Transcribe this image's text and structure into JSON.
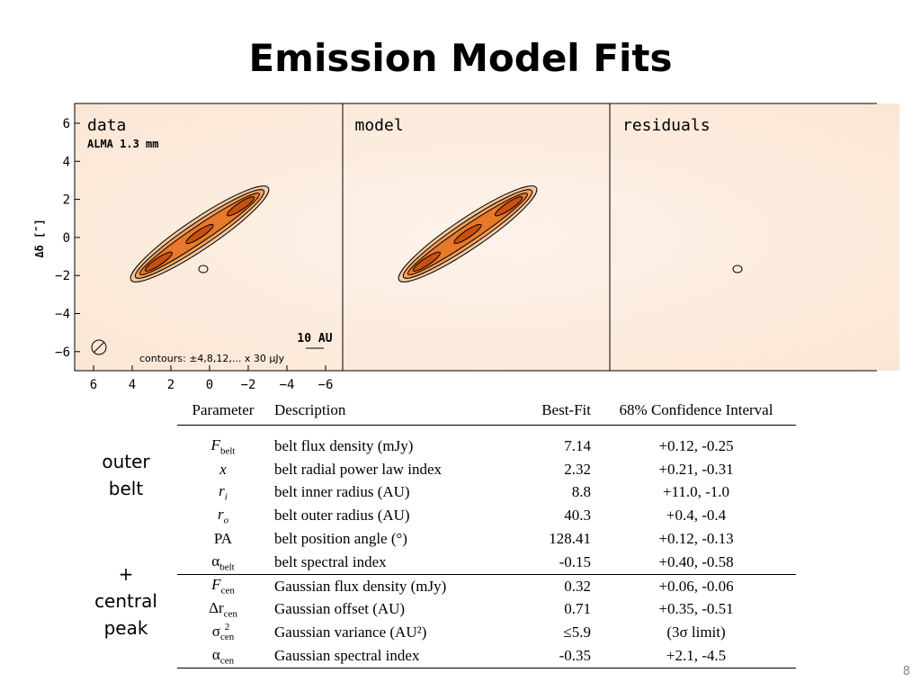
{
  "title": "Emission Model Fits",
  "panels": [
    {
      "label": "data",
      "sublabel": "ALMA 1.3 mm"
    },
    {
      "label": "model"
    },
    {
      "label": "residuals"
    }
  ],
  "y_axis_label": "Δδ [″]",
  "y_ticks": [
    "6",
    "4",
    "2",
    "0",
    "−2",
    "−4",
    "−6"
  ],
  "x_ticks": [
    "6",
    "4",
    "2",
    "0",
    "−2",
    "−4",
    "−6"
  ],
  "scale_bar": "10 AU",
  "contours_note": "contours: ±4,8,12,... x 30 μJy",
  "groups": [
    {
      "lines": [
        "outer",
        "belt"
      ]
    },
    {
      "lines": [
        "+",
        "central",
        "peak"
      ]
    }
  ],
  "table": {
    "header": [
      "Parameter",
      "Description",
      "Best-Fit",
      "68% Confidence Interval"
    ],
    "rows": [
      {
        "param": {
          "base": "F",
          "sub": "belt"
        },
        "description": "belt flux density (mJy)",
        "best_fit": "7.14",
        "interval": "+0.12, -0.25"
      },
      {
        "param": {
          "base": "x"
        },
        "description": "belt radial power law index",
        "best_fit": "2.32",
        "interval": "+0.21, -0.31"
      },
      {
        "param": {
          "base": "r",
          "sub": "i"
        },
        "description": "belt inner radius (AU)",
        "best_fit": "8.8",
        "interval": "+11.0, -1.0"
      },
      {
        "param": {
          "base": "r",
          "sub": "o"
        },
        "description": "belt outer radius (AU)",
        "best_fit": "40.3",
        "interval": "+0.4, -0.4"
      },
      {
        "param": {
          "base": "PA"
        },
        "description": "belt position angle (°)",
        "best_fit": "128.41",
        "interval": "+0.12, -0.13"
      },
      {
        "param": {
          "base": "α",
          "sub": "belt"
        },
        "description": "belt spectral index",
        "best_fit": "-0.15",
        "interval": "+0.40, -0.58"
      },
      {
        "param": {
          "base": "F",
          "sub": "cen"
        },
        "description": "Gaussian flux density (mJy)",
        "best_fit": "0.32",
        "interval": "+0.06, -0.06"
      },
      {
        "param": {
          "base": "Δr",
          "sub": "cen"
        },
        "description": "Gaussian offset (AU)",
        "best_fit": "0.71",
        "interval": "+0.35, -0.51"
      },
      {
        "param": {
          "base": "σ",
          "sup": "2",
          "sub": "cen"
        },
        "description": "Gaussian variance (AU²)",
        "best_fit": "≤5.9",
        "interval": "(3σ limit)"
      },
      {
        "param": {
          "base": "α",
          "sub": "cen"
        },
        "description": "Gaussian spectral index",
        "best_fit": "-0.35",
        "interval": "+2.1, -4.5"
      }
    ]
  },
  "page_number": "8"
}
